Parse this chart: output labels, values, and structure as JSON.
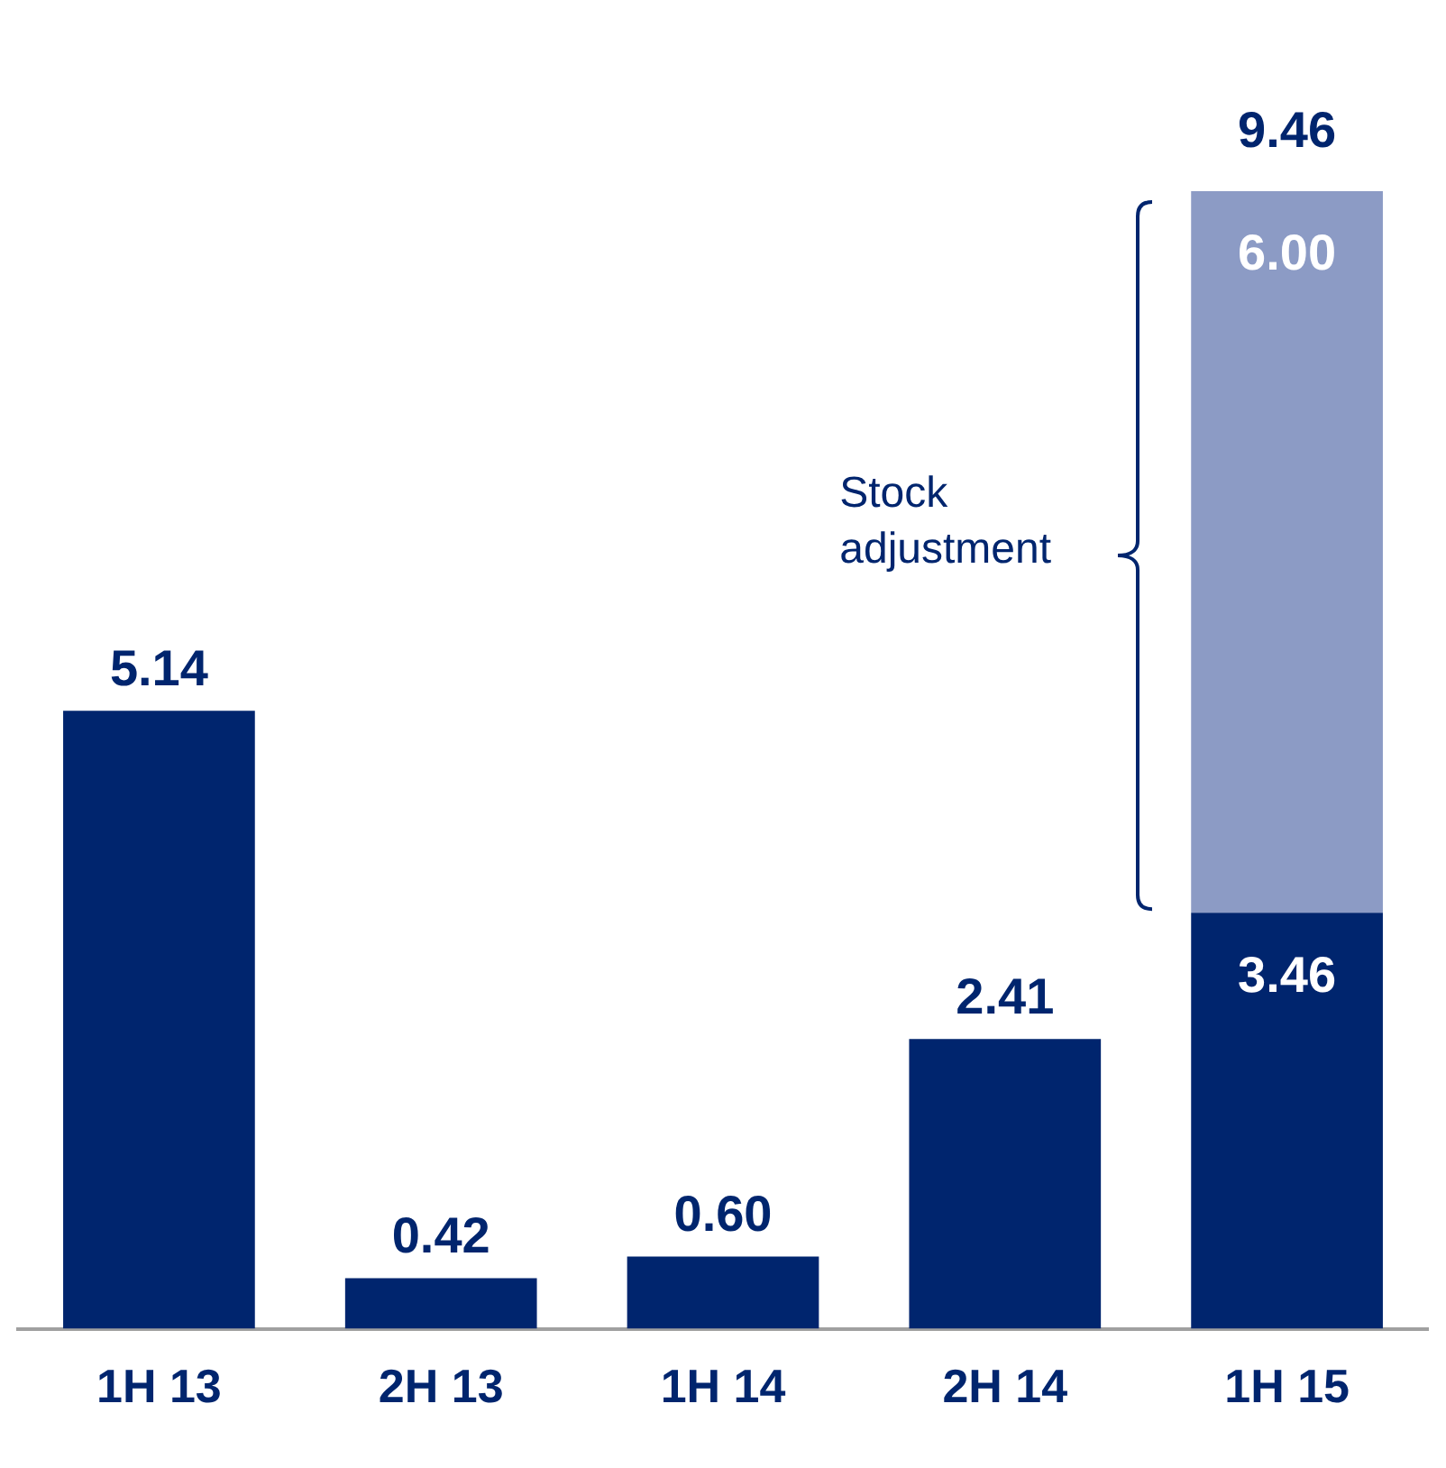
{
  "chart_data": {
    "type": "bar",
    "stacked": true,
    "categories": [
      "1H 13",
      "2H 13",
      "1H 14",
      "2H 14",
      "1H 15"
    ],
    "series": [
      {
        "color": "#00256e",
        "values": [
          5.14,
          0.42,
          0.6,
          2.41,
          3.46
        ],
        "value_labels": [
          "5.14",
          "0.42",
          "0.60",
          "2.41",
          "3.46"
        ]
      },
      {
        "color": "#8c9bc5",
        "values": [
          null,
          null,
          null,
          null,
          6.0
        ],
        "value_labels": [
          null,
          null,
          null,
          null,
          "6.00"
        ]
      }
    ],
    "totals": [
      null,
      null,
      null,
      null,
      "9.46"
    ],
    "annotations": [
      "Stock adjustment"
    ],
    "legend": false,
    "grid": false
  }
}
